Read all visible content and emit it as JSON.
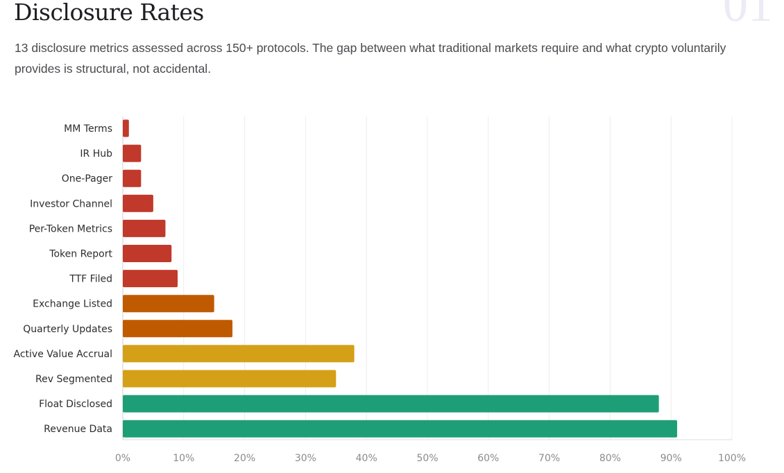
{
  "header": {
    "title": "Disclosure Rates",
    "section_number": "01",
    "description": "13 disclosure metrics assessed across 150+ protocols. The gap between what traditional markets require and what crypto voluntarily provides is structural, not accidental."
  },
  "chart_data": {
    "type": "bar",
    "orientation": "horizontal",
    "title": "",
    "xlabel": "",
    "ylabel": "",
    "xlim": [
      0,
      100
    ],
    "x_ticks": [
      "0%",
      "10%",
      "20%",
      "30%",
      "40%",
      "50%",
      "60%",
      "70%",
      "80%",
      "90%",
      "100%"
    ],
    "grid": true,
    "categories": [
      "MM Terms",
      "IR Hub",
      "One-Pager",
      "Investor Channel",
      "Per-Token Metrics",
      "Token Report",
      "TTF Filed",
      "Exchange Listed",
      "Quarterly Updates",
      "Active Value Accrual",
      "Rev Segmented",
      "Float Disclosed",
      "Revenue Data"
    ],
    "values": [
      1,
      3,
      3,
      5,
      7,
      8,
      9,
      15,
      18,
      38,
      35,
      88,
      91
    ],
    "colors": [
      "#c0392b",
      "#c0392b",
      "#c0392b",
      "#c0392b",
      "#c0392b",
      "#c0392b",
      "#c0392b",
      "#c05a00",
      "#c05a00",
      "#d4a017",
      "#d4a017",
      "#1e9e77",
      "#1e9e77"
    ]
  }
}
